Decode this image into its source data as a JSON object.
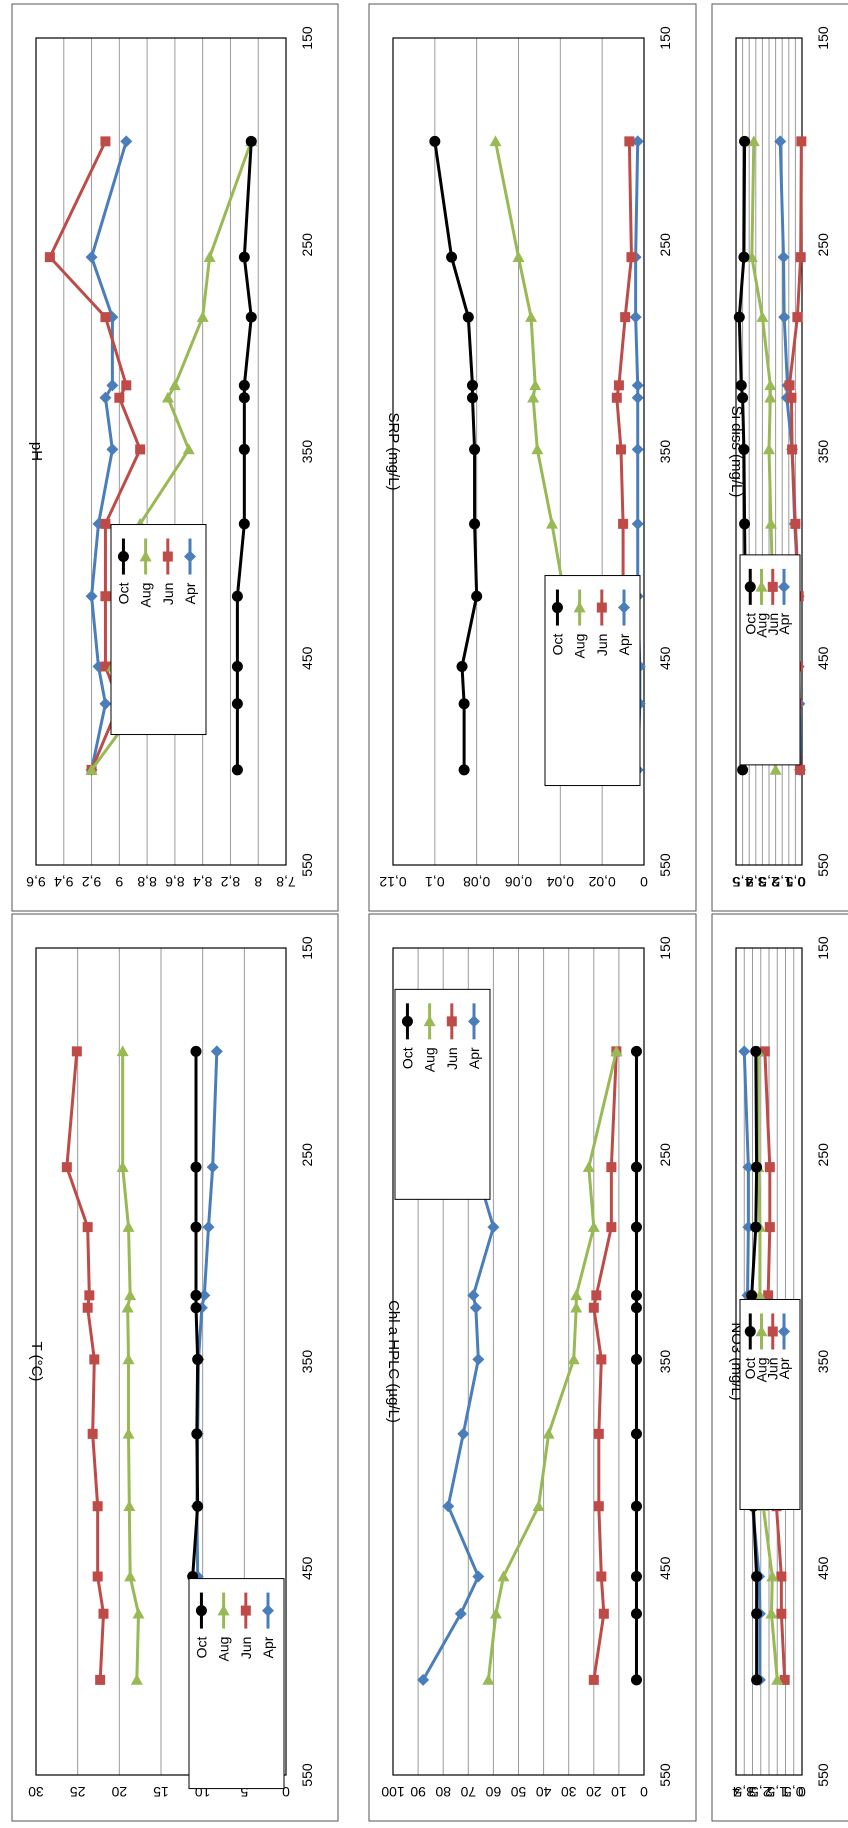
{
  "chart_data": [
    {
      "id": "temp",
      "type": "line",
      "ylabel": "T (°C)",
      "x": [
        200,
        256,
        285,
        318,
        324,
        349,
        385,
        420,
        454,
        472,
        504
      ],
      "ylim": [
        0,
        30
      ],
      "yticks": [
        "0",
        "5",
        "10",
        "15",
        "20",
        "25",
        "30"
      ],
      "xlim": [
        150,
        550
      ],
      "xticks": [
        "150",
        "250",
        "350",
        "450",
        "550"
      ],
      "legend": "top-right",
      "series": [
        {
          "name": "Apr",
          "values": [
            8.3,
            8.8,
            9.3,
            9.8,
            10.1,
            10.5,
            10.6,
            10.7,
            10.6,
            10.7,
            10.8
          ]
        },
        {
          "name": "Jun",
          "values": [
            25.1,
            26.3,
            23.8,
            23.6,
            23.8,
            23.0,
            23.2,
            22.6,
            22.6,
            21.9,
            22.3
          ]
        },
        {
          "name": "Aug",
          "values": [
            19.6,
            19.6,
            18.9,
            18.7,
            19.0,
            18.9,
            18.9,
            18.8,
            18.7,
            17.7,
            17.9
          ]
        },
        {
          "name": "Oct",
          "values": [
            10.8,
            10.8,
            10.8,
            10.8,
            10.8,
            10.6,
            10.7,
            10.6,
            11.2,
            10.2,
            10.7
          ]
        }
      ]
    },
    {
      "id": "chla",
      "type": "line",
      "ylabel": "Chl a HPLC (µg/L)",
      "x": [
        200,
        256,
        285,
        318,
        324,
        349,
        385,
        420,
        454,
        472,
        504
      ],
      "ylim": [
        0,
        100
      ],
      "yticks": [
        "0",
        "10",
        "20",
        "30",
        "40",
        "50",
        "60",
        "70",
        "80",
        "90",
        "100"
      ],
      "xlim": [
        150,
        550
      ],
      "xticks": [
        "150",
        "250",
        "350",
        "450",
        "550"
      ],
      "legend": "top-left",
      "series": [
        {
          "name": "Apr",
          "values": [
            67,
            67,
            60,
            68,
            67,
            66,
            72,
            78,
            66,
            73,
            88
          ]
        },
        {
          "name": "Jun",
          "values": [
            11,
            13,
            13,
            19,
            20,
            17,
            18,
            18,
            17,
            16,
            20
          ]
        },
        {
          "name": "Aug",
          "values": [
            11,
            22,
            20,
            27,
            27,
            28,
            38,
            42,
            56,
            59,
            62
          ]
        },
        {
          "name": "Oct",
          "values": [
            3,
            3,
            3,
            3,
            3,
            3,
            3,
            3,
            3,
            3,
            3
          ]
        }
      ]
    },
    {
      "id": "no3",
      "type": "line",
      "ylabel": "NO3 (mg/L)",
      "x": [
        200,
        256,
        285,
        318,
        324,
        349,
        385,
        420,
        454,
        472,
        504
      ],
      "ylim": [
        0,
        4
      ],
      "yticks": [
        "0",
        "0,5",
        "1",
        "1,5",
        "2",
        "2,5",
        "3",
        "3,5",
        "4"
      ],
      "xlim": [
        150,
        550
      ],
      "xticks": [
        "150",
        "250",
        "350",
        "450",
        "550"
      ],
      "legend": "middle",
      "series": [
        {
          "name": "Apr",
          "values": [
            3.5,
            3.25,
            3.25,
            3.3,
            3.25,
            3.2,
            3.15,
            3.0,
            2.6,
            2.55,
            2.55
          ]
        },
        {
          "name": "Jun",
          "values": [
            2.25,
            1.95,
            1.95,
            2.05,
            2.0,
            1.95,
            1.7,
            1.55,
            1.25,
            1.25,
            1.05
          ]
        },
        {
          "name": "Aug",
          "values": [
            2.65,
            2.65,
            2.55,
            2.55,
            2.6,
            2.55,
            2.5,
            2.35,
            1.8,
            1.85,
            1.5
          ]
        },
        {
          "name": "Oct",
          "values": [
            2.8,
            2.75,
            2.8,
            3.05,
            3.0,
            3.0,
            3.0,
            2.95,
            2.75,
            2.75,
            2.75
          ]
        }
      ]
    },
    {
      "id": "ph",
      "type": "line",
      "ylabel": "pH",
      "x": [
        200,
        256,
        285,
        318,
        324,
        349,
        385,
        420,
        454,
        472,
        504
      ],
      "ylim": [
        7.8,
        9.6
      ],
      "yticks": [
        "7,8",
        "8",
        "8,2",
        "8,4",
        "8,6",
        "8,8",
        "9",
        "9,2",
        "9,4",
        "9,6"
      ],
      "xlim": [
        150,
        550
      ],
      "xticks": [
        "150",
        "250",
        "350",
        "450",
        "550"
      ],
      "legend": "top-middle",
      "series": [
        {
          "name": "Apr",
          "values": [
            8.95,
            9.2,
            9.05,
            9.05,
            9.1,
            9.05,
            9.15,
            9.2,
            9.15,
            9.1,
            9.2
          ]
        },
        {
          "name": "Jun",
          "values": [
            9.1,
            9.5,
            9.1,
            8.95,
            9.0,
            8.85,
            9.1,
            9.1,
            9.1,
            9.0,
            9.2
          ]
        },
        {
          "name": "Aug",
          "values": [
            8.05,
            8.35,
            8.4,
            8.6,
            8.65,
            8.5,
            8.85,
            8.8,
            9.05,
            8.85,
            9.2
          ]
        },
        {
          "name": "Oct",
          "values": [
            8.05,
            8.1,
            8.05,
            8.1,
            8.1,
            8.1,
            8.1,
            8.15,
            8.15,
            8.15,
            8.15
          ]
        }
      ]
    },
    {
      "id": "srp",
      "type": "line",
      "ylabel": "SRP (mg/L)",
      "x": [
        200,
        256,
        285,
        318,
        324,
        349,
        385,
        420,
        454,
        472,
        504
      ],
      "ylim": [
        0,
        0.12
      ],
      "yticks": [
        "0",
        "0,02",
        "0,04",
        "0,06",
        "0,08",
        "0,1",
        "0,12"
      ],
      "xlim": [
        150,
        550
      ],
      "xticks": [
        "150",
        "250",
        "350",
        "450",
        "550"
      ],
      "legend": "top-right",
      "series": [
        {
          "name": "Apr",
          "values": [
            0.003,
            0.004,
            0.004,
            0.003,
            0.003,
            0.003,
            0.003,
            0.003,
            0.002,
            0.002,
            0.003
          ]
        },
        {
          "name": "Jun",
          "values": [
            0.007,
            0.006,
            0.009,
            0.012,
            0.013,
            0.011,
            0.01,
            0.01,
            0.009,
            0.009,
            0.009
          ]
        },
        {
          "name": "Aug",
          "values": [
            0.071,
            0.06,
            0.054,
            0.052,
            0.053,
            0.051,
            0.044,
            0.038,
            0.023,
            0.018,
            0.01
          ]
        },
        {
          "name": "Oct",
          "values": [
            0.1,
            0.092,
            0.084,
            0.082,
            0.082,
            0.081,
            0.081,
            0.08,
            0.087,
            0.086,
            0.086
          ]
        }
      ]
    },
    {
      "id": "si",
      "type": "line",
      "ylabel": "Si diss (mg/L)",
      "x": [
        200,
        256,
        285,
        318,
        324,
        349,
        385,
        420,
        454,
        472,
        504
      ],
      "ylim": [
        0,
        5
      ],
      "yticks": [
        "0",
        "0,5",
        "1",
        "1,5",
        "2",
        "2,5",
        "3",
        "3,5",
        "4",
        "4,5",
        "5"
      ],
      "xlim": [
        150,
        550
      ],
      "xticks": [
        "150",
        "250",
        "350",
        "450",
        "550"
      ],
      "legend": "top-right",
      "series": [
        {
          "name": "Apr",
          "values": [
            1.65,
            1.4,
            1.35,
            1.1,
            1.15,
            0.75,
            0.55,
            0.25,
            0.25,
            0.2,
            0.15
          ]
        },
        {
          "name": "Jun",
          "values": [
            0.05,
            0.1,
            0.35,
            0.95,
            0.8,
            0.75,
            0.5,
            0.25,
            0.3,
            0.4,
            0.15
          ]
        },
        {
          "name": "Aug",
          "values": [
            3.65,
            3.8,
            3.0,
            2.4,
            2.4,
            2.5,
            2.35,
            2.2,
            2.0,
            2.25,
            2.0
          ]
        },
        {
          "name": "Oct",
          "values": [
            4.35,
            4.4,
            4.75,
            4.6,
            4.5,
            4.4,
            4.35,
            4.3,
            4.3,
            4.3,
            4.5
          ]
        }
      ]
    }
  ],
  "legend_labels": [
    "Apr",
    "Jun",
    "Aug",
    "Oct"
  ],
  "series_colors": {
    "Apr": "#4A7EBB",
    "Jun": "#BE4B48",
    "Aug": "#98B954",
    "Oct": "#000000"
  },
  "series_markers": {
    "Apr": "diamond",
    "Jun": "square",
    "Aug": "triangle",
    "Oct": "circle"
  }
}
